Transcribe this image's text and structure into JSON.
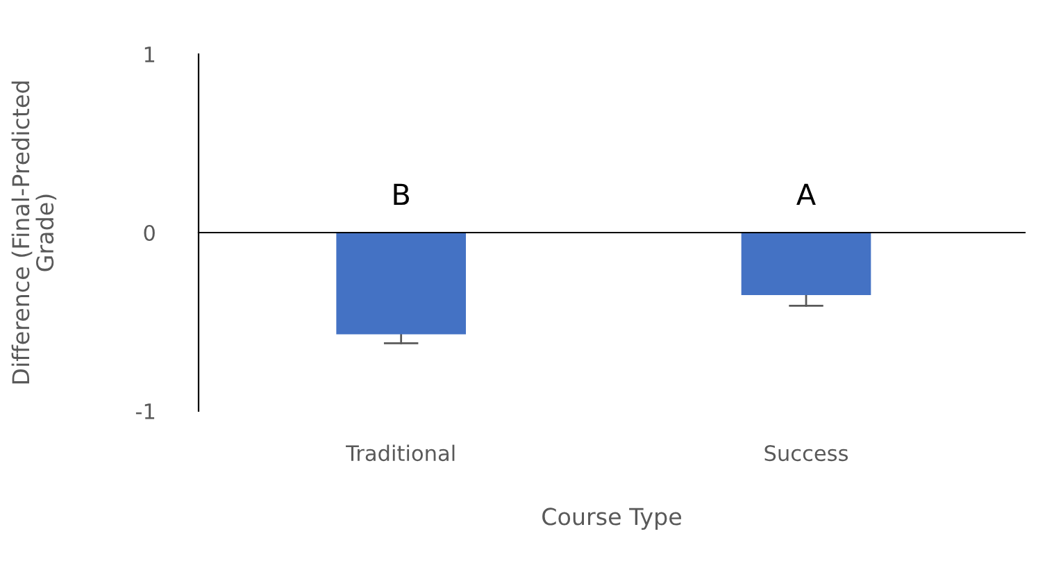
{
  "chart_data": {
    "type": "bar",
    "xlabel": "Course Type",
    "ylabel": "Difference (Final-Predicted\nGrade)",
    "categories": [
      "Traditional",
      "Success"
    ],
    "values": [
      -0.57,
      -0.35
    ],
    "errors": [
      [
        -0.62,
        -0.57
      ],
      [
        -0.41,
        -0.35
      ]
    ],
    "color": "#4472c4",
    "ylim": [
      -1,
      1
    ],
    "yticks": [
      -1,
      0,
      1
    ],
    "annotations": [
      "B",
      "A"
    ]
  }
}
